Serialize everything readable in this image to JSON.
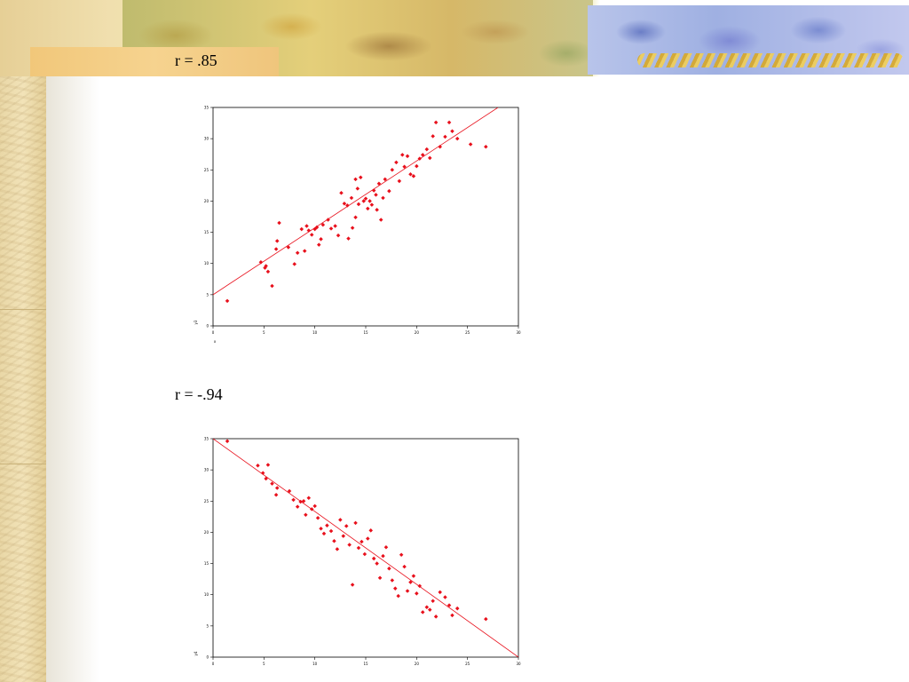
{
  "slide": {
    "label_top": "r = .85",
    "label_bottom": "r = -.94"
  },
  "colors": {
    "points": "#e8101c",
    "fit_line": "#e8101c",
    "axis": "#000000"
  },
  "chart_data": [
    {
      "type": "scatter",
      "title": "",
      "xlabel": "x",
      "ylabel": "y3",
      "xlim": [
        0,
        30
      ],
      "ylim": [
        0,
        35
      ],
      "grid": false,
      "fit_line": {
        "from": [
          0,
          5
        ],
        "to": [
          28,
          35
        ]
      },
      "series": [
        {
          "x": [
            1.4,
            4.7,
            5.1,
            5.2,
            5.4,
            5.8,
            6.2,
            6.3,
            6.5,
            7.4,
            8.0,
            8.3,
            8.7,
            9.0,
            9.2,
            9.4,
            9.7,
            10.0,
            10.2,
            10.4,
            10.6,
            10.8,
            11.3,
            11.6,
            12.0,
            12.3,
            12.6,
            12.9,
            13.2,
            13.3,
            13.6,
            13.7,
            14.0,
            14.0,
            14.2,
            14.3,
            14.5,
            14.8,
            15.0,
            15.2,
            15.4,
            15.6,
            15.8,
            16.0,
            16.1,
            16.3,
            16.5,
            16.7,
            16.9,
            17.3,
            17.6,
            18.0,
            18.3,
            18.6,
            18.8,
            19.1,
            19.4,
            19.7,
            20.0,
            20.3,
            20.6,
            21.0,
            21.3,
            21.6,
            21.9,
            22.3,
            22.8,
            23.2,
            23.5,
            24.0,
            25.3,
            26.8
          ],
          "y": [
            4.0,
            10.2,
            9.3,
            9.6,
            8.7,
            6.4,
            12.3,
            13.6,
            16.5,
            12.6,
            9.9,
            11.7,
            15.5,
            12.0,
            16.0,
            15.3,
            14.6,
            15.5,
            15.8,
            13.0,
            13.9,
            16.2,
            17.0,
            15.6,
            16.0,
            14.5,
            21.3,
            19.6,
            19.3,
            14.0,
            20.5,
            15.7,
            17.4,
            23.5,
            22.0,
            19.5,
            23.8,
            20.0,
            20.4,
            18.8,
            20.0,
            19.4,
            21.7,
            21.0,
            18.6,
            22.8,
            17.0,
            20.5,
            23.5,
            21.6,
            25.0,
            26.2,
            23.2,
            27.4,
            25.5,
            27.2,
            24.3,
            24.0,
            25.6,
            26.8,
            27.4,
            28.3,
            26.9,
            30.4,
            32.6,
            28.7,
            30.3,
            32.6,
            31.2,
            30.0,
            29.1,
            28.7
          ]
        }
      ]
    },
    {
      "type": "scatter",
      "title": "",
      "xlabel": "",
      "ylabel": "y4",
      "xlim": [
        0,
        30
      ],
      "ylim": [
        0,
        35
      ],
      "grid": false,
      "fit_line": {
        "from": [
          0,
          35
        ],
        "to": [
          30,
          0
        ]
      },
      "series": [
        {
          "x": [
            1.4,
            4.4,
            4.9,
            5.2,
            5.4,
            5.8,
            6.2,
            6.3,
            7.5,
            7.9,
            8.3,
            8.6,
            8.9,
            9.1,
            9.4,
            9.7,
            10.0,
            10.3,
            10.6,
            10.9,
            11.2,
            11.6,
            11.9,
            12.2,
            12.5,
            12.8,
            13.1,
            13.4,
            13.7,
            14.0,
            14.3,
            14.6,
            14.9,
            15.2,
            15.5,
            15.8,
            16.1,
            16.4,
            16.7,
            17.0,
            17.3,
            17.6,
            17.9,
            18.2,
            18.5,
            18.8,
            19.1,
            19.4,
            19.7,
            20.0,
            20.3,
            20.6,
            21.0,
            21.3,
            21.6,
            21.9,
            22.3,
            22.8,
            23.2,
            23.5,
            24.0,
            26.8
          ],
          "y": [
            34.6,
            30.7,
            29.5,
            28.6,
            30.8,
            27.8,
            26.0,
            27.1,
            26.6,
            25.2,
            24.1,
            24.9,
            25.0,
            22.8,
            25.5,
            23.7,
            24.2,
            22.3,
            20.6,
            19.8,
            21.1,
            20.2,
            18.6,
            17.3,
            22.0,
            19.4,
            21.0,
            18.0,
            11.6,
            21.5,
            17.5,
            18.5,
            16.5,
            19.0,
            20.3,
            15.8,
            15.0,
            12.7,
            16.2,
            17.6,
            14.2,
            12.3,
            11.0,
            9.8,
            16.4,
            14.5,
            10.6,
            12.0,
            13.0,
            10.2,
            11.4,
            7.2,
            8.0,
            7.6,
            9.0,
            6.5,
            10.4,
            9.6,
            8.3,
            6.7,
            7.8,
            6.1
          ]
        }
      ]
    }
  ]
}
